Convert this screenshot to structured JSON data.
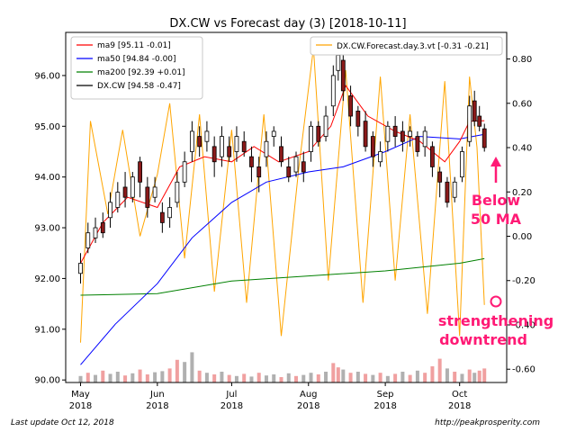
{
  "chart_data": {
    "type": "line",
    "title": "DX.CW vs Forecast day (3)  [2018-10-11]",
    "x_ticks": [
      "May\n2018",
      "Jun\n2018",
      "Jul\n2018",
      "Aug\n2018",
      "Sep\n2018",
      "Oct\n2018"
    ],
    "x_tick_dates": [
      "2018-05-01",
      "2018-06-01",
      "2018-07-01",
      "2018-08-01",
      "2018-09-01",
      "2018-10-01"
    ],
    "xlim": [
      "2018-04-25",
      "2018-10-20"
    ],
    "ylim_left": [
      89.95,
      96.85
    ],
    "yticks_left": [
      "90.00",
      "91.00",
      "92.00",
      "93.00",
      "94.00",
      "95.00",
      "96.00"
    ],
    "ylim_right": [
      -0.66,
      0.92
    ],
    "yticks_right": [
      "-0.60",
      "-0.40",
      "-0.20",
      "0.00",
      "0.20",
      "0.40",
      "0.60",
      "0.80"
    ],
    "legend_left": [
      "ma9 [95.11 -0.01]",
      "ma50 [94.84 -0.00]",
      "ma200 [92.39 +0.01]",
      "DX.CW [94.58 -0.47]"
    ],
    "legend_right": [
      "DX.CW.Forecast.day.3.vt [-0.31 -0.21]"
    ],
    "colors": {
      "ma9": "#ff0000",
      "ma50": "#0000ff",
      "ma200": "#008000",
      "forecast": "#ffa500",
      "candle_up": "#ffffff",
      "candle_down": "#8b1a1a",
      "volume_up": "#b0b0b0",
      "volume_down": "#f0a0a0",
      "annotation": "#ff1a75"
    },
    "series": [
      {
        "name": "ma9",
        "x": [
          "2018-05-01",
          "2018-05-10",
          "2018-05-20",
          "2018-06-01",
          "2018-06-10",
          "2018-06-20",
          "2018-07-01",
          "2018-07-10",
          "2018-07-20",
          "2018-08-01",
          "2018-08-10",
          "2018-08-16",
          "2018-08-25",
          "2018-09-05",
          "2018-09-15",
          "2018-09-25",
          "2018-10-01",
          "2018-10-05",
          "2018-10-11"
        ],
        "y": [
          92.3,
          93.1,
          93.6,
          93.4,
          94.2,
          94.4,
          94.3,
          94.6,
          94.3,
          94.5,
          95.0,
          95.8,
          95.2,
          94.9,
          94.7,
          94.3,
          94.7,
          95.1,
          95.11
        ]
      },
      {
        "name": "ma50",
        "x": [
          "2018-05-01",
          "2018-05-15",
          "2018-06-01",
          "2018-06-15",
          "2018-07-01",
          "2018-07-15",
          "2018-08-01",
          "2018-08-15",
          "2018-09-01",
          "2018-09-15",
          "2018-10-01",
          "2018-10-11"
        ],
        "y": [
          90.3,
          91.1,
          91.9,
          92.8,
          93.5,
          93.9,
          94.1,
          94.2,
          94.5,
          94.8,
          94.75,
          94.84
        ]
      },
      {
        "name": "ma200",
        "x": [
          "2018-05-01",
          "2018-06-01",
          "2018-07-01",
          "2018-08-01",
          "2018-09-01",
          "2018-10-01",
          "2018-10-11"
        ],
        "y": [
          91.67,
          91.7,
          91.95,
          92.05,
          92.15,
          92.3,
          92.39
        ]
      },
      {
        "name": "DX.CW.Forecast.day.3.vt",
        "axis": "right",
        "x": [
          "2018-05-01",
          "2018-05-05",
          "2018-05-12",
          "2018-05-18",
          "2018-05-25",
          "2018-06-01",
          "2018-06-06",
          "2018-06-12",
          "2018-06-18",
          "2018-06-24",
          "2018-07-01",
          "2018-07-07",
          "2018-07-14",
          "2018-07-21",
          "2018-07-28",
          "2018-08-03",
          "2018-08-09",
          "2018-08-16",
          "2018-08-23",
          "2018-08-30",
          "2018-09-05",
          "2018-09-11",
          "2018-09-18",
          "2018-09-25",
          "2018-10-01",
          "2018-10-05",
          "2018-10-08",
          "2018-10-11"
        ],
        "y": [
          -0.48,
          0.52,
          0.1,
          0.48,
          0.0,
          0.28,
          0.6,
          -0.1,
          0.55,
          -0.25,
          0.48,
          -0.3,
          0.55,
          -0.45,
          0.3,
          0.85,
          -0.2,
          0.75,
          -0.3,
          0.72,
          -0.2,
          0.55,
          -0.35,
          0.7,
          -0.45,
          0.72,
          0.4,
          -0.31
        ]
      }
    ],
    "candles": [
      {
        "x": "2018-05-01",
        "o": 92.1,
        "c": 92.3,
        "h": 92.5,
        "l": 91.9
      },
      {
        "x": "2018-05-04",
        "o": 92.6,
        "c": 92.9,
        "h": 93.1,
        "l": 92.5
      },
      {
        "x": "2018-05-07",
        "o": 92.8,
        "c": 93.0,
        "h": 93.2,
        "l": 92.7
      },
      {
        "x": "2018-05-10",
        "o": 93.1,
        "c": 92.9,
        "h": 93.3,
        "l": 92.8
      },
      {
        "x": "2018-05-13",
        "o": 93.2,
        "c": 93.5,
        "h": 93.7,
        "l": 93.0
      },
      {
        "x": "2018-05-16",
        "o": 93.4,
        "c": 93.7,
        "h": 93.9,
        "l": 93.3
      },
      {
        "x": "2018-05-19",
        "o": 93.8,
        "c": 93.6,
        "h": 94.1,
        "l": 93.4
      },
      {
        "x": "2018-05-22",
        "o": 93.6,
        "c": 94.0,
        "h": 94.1,
        "l": 93.5
      },
      {
        "x": "2018-05-25",
        "o": 94.3,
        "c": 93.9,
        "h": 94.4,
        "l": 93.6
      },
      {
        "x": "2018-05-28",
        "o": 93.8,
        "c": 93.4,
        "h": 94.0,
        "l": 93.2
      },
      {
        "x": "2018-05-31",
        "o": 93.6,
        "c": 93.8,
        "h": 94.0,
        "l": 93.5
      },
      {
        "x": "2018-06-03",
        "o": 93.3,
        "c": 93.1,
        "h": 93.5,
        "l": 92.9
      },
      {
        "x": "2018-06-06",
        "o": 93.2,
        "c": 93.4,
        "h": 93.6,
        "l": 93.0
      },
      {
        "x": "2018-06-09",
        "o": 93.5,
        "c": 93.9,
        "h": 94.1,
        "l": 93.4
      },
      {
        "x": "2018-06-12",
        "o": 93.9,
        "c": 94.3,
        "h": 94.5,
        "l": 93.8
      },
      {
        "x": "2018-06-15",
        "o": 94.5,
        "c": 94.9,
        "h": 95.1,
        "l": 94.3
      },
      {
        "x": "2018-06-18",
        "o": 94.8,
        "c": 94.6,
        "h": 95.0,
        "l": 94.4
      },
      {
        "x": "2018-06-21",
        "o": 94.7,
        "c": 94.9,
        "h": 95.1,
        "l": 94.5
      },
      {
        "x": "2018-06-24",
        "o": 94.6,
        "c": 94.3,
        "h": 94.8,
        "l": 94.0
      },
      {
        "x": "2018-06-27",
        "o": 94.4,
        "c": 94.8,
        "h": 95.0,
        "l": 94.2
      },
      {
        "x": "2018-06-30",
        "o": 94.6,
        "c": 94.4,
        "h": 94.8,
        "l": 94.3
      },
      {
        "x": "2018-07-03",
        "o": 94.5,
        "c": 94.8,
        "h": 95.0,
        "l": 94.3
      },
      {
        "x": "2018-07-06",
        "o": 94.7,
        "c": 94.5,
        "h": 94.9,
        "l": 94.4
      },
      {
        "x": "2018-07-09",
        "o": 94.4,
        "c": 94.2,
        "h": 94.6,
        "l": 93.9
      },
      {
        "x": "2018-07-12",
        "o": 94.2,
        "c": 94.0,
        "h": 94.4,
        "l": 93.7
      },
      {
        "x": "2018-07-15",
        "o": 94.4,
        "c": 94.7,
        "h": 94.9,
        "l": 94.2
      },
      {
        "x": "2018-07-18",
        "o": 94.8,
        "c": 94.9,
        "h": 95.0,
        "l": 94.6
      },
      {
        "x": "2018-07-21",
        "o": 94.6,
        "c": 94.3,
        "h": 94.8,
        "l": 94.2
      },
      {
        "x": "2018-07-24",
        "o": 94.2,
        "c": 94.0,
        "h": 94.4,
        "l": 93.9
      },
      {
        "x": "2018-07-27",
        "o": 94.1,
        "c": 94.4,
        "h": 94.5,
        "l": 94.0
      },
      {
        "x": "2018-07-30",
        "o": 94.3,
        "c": 94.1,
        "h": 94.5,
        "l": 93.9
      },
      {
        "x": "2018-08-02",
        "o": 94.5,
        "c": 95.0,
        "h": 95.1,
        "l": 94.3
      },
      {
        "x": "2018-08-05",
        "o": 95.0,
        "c": 94.7,
        "h": 95.1,
        "l": 94.6
      },
      {
        "x": "2018-08-08",
        "o": 94.8,
        "c": 95.2,
        "h": 95.4,
        "l": 94.7
      },
      {
        "x": "2018-08-11",
        "o": 95.4,
        "c": 96.0,
        "h": 96.2,
        "l": 95.2
      },
      {
        "x": "2018-08-13",
        "o": 96.1,
        "c": 96.4,
        "h": 96.5,
        "l": 95.9
      },
      {
        "x": "2018-08-15",
        "o": 96.3,
        "c": 95.7,
        "h": 96.4,
        "l": 95.5
      },
      {
        "x": "2018-08-18",
        "o": 95.6,
        "c": 95.2,
        "h": 95.8,
        "l": 95.0
      },
      {
        "x": "2018-08-21",
        "o": 95.3,
        "c": 95.0,
        "h": 95.4,
        "l": 94.8
      },
      {
        "x": "2018-08-24",
        "o": 95.1,
        "c": 94.6,
        "h": 95.3,
        "l": 94.5
      },
      {
        "x": "2018-08-27",
        "o": 94.8,
        "c": 94.4,
        "h": 94.9,
        "l": 94.2
      },
      {
        "x": "2018-08-30",
        "o": 94.3,
        "c": 94.5,
        "h": 94.7,
        "l": 94.2
      },
      {
        "x": "2018-09-02",
        "o": 94.7,
        "c": 95.0,
        "h": 95.1,
        "l": 94.5
      },
      {
        "x": "2018-09-05",
        "o": 95.0,
        "c": 94.8,
        "h": 95.2,
        "l": 94.6
      },
      {
        "x": "2018-09-08",
        "o": 94.9,
        "c": 94.7,
        "h": 95.1,
        "l": 94.5
      },
      {
        "x": "2018-09-11",
        "o": 94.8,
        "c": 94.9,
        "h": 95.0,
        "l": 94.6
      },
      {
        "x": "2018-09-14",
        "o": 94.8,
        "c": 94.5,
        "h": 94.9,
        "l": 94.4
      },
      {
        "x": "2018-09-17",
        "o": 94.6,
        "c": 94.9,
        "h": 95.0,
        "l": 94.4
      },
      {
        "x": "2018-09-20",
        "o": 94.6,
        "c": 94.2,
        "h": 94.7,
        "l": 94.0
      },
      {
        "x": "2018-09-23",
        "o": 94.1,
        "c": 93.9,
        "h": 94.2,
        "l": 93.6
      },
      {
        "x": "2018-09-26",
        "o": 93.9,
        "c": 93.5,
        "h": 94.0,
        "l": 93.4
      },
      {
        "x": "2018-09-29",
        "o": 93.6,
        "c": 93.9,
        "h": 94.0,
        "l": 93.5
      },
      {
        "x": "2018-10-02",
        "o": 94.0,
        "c": 94.5,
        "h": 94.6,
        "l": 93.9
      },
      {
        "x": "2018-10-05",
        "o": 94.7,
        "c": 95.4,
        "h": 95.6,
        "l": 94.6
      },
      {
        "x": "2018-10-07",
        "o": 95.5,
        "c": 95.1,
        "h": 95.7,
        "l": 95.0
      },
      {
        "x": "2018-10-09",
        "o": 95.2,
        "c": 95.0,
        "h": 95.4,
        "l": 94.9
      },
      {
        "x": "2018-10-11",
        "o": 94.95,
        "c": 94.58,
        "h": 95.05,
        "l": 94.5
      }
    ],
    "volume_scale": [
      0,
      1
    ],
    "volumes": [
      {
        "x": "2018-05-01",
        "v": 0.12,
        "down": false
      },
      {
        "x": "2018-05-04",
        "v": 0.18,
        "down": true
      },
      {
        "x": "2018-05-07",
        "v": 0.14,
        "down": false
      },
      {
        "x": "2018-05-10",
        "v": 0.22,
        "down": true
      },
      {
        "x": "2018-05-13",
        "v": 0.16,
        "down": false
      },
      {
        "x": "2018-05-16",
        "v": 0.2,
        "down": false
      },
      {
        "x": "2018-05-19",
        "v": 0.13,
        "down": true
      },
      {
        "x": "2018-05-22",
        "v": 0.17,
        "down": false
      },
      {
        "x": "2018-05-25",
        "v": 0.24,
        "down": true
      },
      {
        "x": "2018-05-28",
        "v": 0.15,
        "down": true
      },
      {
        "x": "2018-05-31",
        "v": 0.19,
        "down": false
      },
      {
        "x": "2018-06-03",
        "v": 0.21,
        "down": false
      },
      {
        "x": "2018-06-06",
        "v": 0.26,
        "down": true
      },
      {
        "x": "2018-06-09",
        "v": 0.42,
        "down": true
      },
      {
        "x": "2018-06-12",
        "v": 0.38,
        "down": false
      },
      {
        "x": "2018-06-15",
        "v": 0.56,
        "down": false
      },
      {
        "x": "2018-06-18",
        "v": 0.22,
        "down": true
      },
      {
        "x": "2018-06-21",
        "v": 0.18,
        "down": false
      },
      {
        "x": "2018-06-24",
        "v": 0.15,
        "down": true
      },
      {
        "x": "2018-06-27",
        "v": 0.2,
        "down": false
      },
      {
        "x": "2018-06-30",
        "v": 0.14,
        "down": true
      },
      {
        "x": "2018-07-03",
        "v": 0.12,
        "down": false
      },
      {
        "x": "2018-07-06",
        "v": 0.16,
        "down": true
      },
      {
        "x": "2018-07-09",
        "v": 0.11,
        "down": false
      },
      {
        "x": "2018-07-12",
        "v": 0.18,
        "down": true
      },
      {
        "x": "2018-07-15",
        "v": 0.13,
        "down": false
      },
      {
        "x": "2018-07-18",
        "v": 0.15,
        "down": false
      },
      {
        "x": "2018-07-21",
        "v": 0.1,
        "down": true
      },
      {
        "x": "2018-07-24",
        "v": 0.17,
        "down": false
      },
      {
        "x": "2018-07-27",
        "v": 0.12,
        "down": true
      },
      {
        "x": "2018-07-30",
        "v": 0.14,
        "down": false
      },
      {
        "x": "2018-08-02",
        "v": 0.18,
        "down": false
      },
      {
        "x": "2018-08-05",
        "v": 0.15,
        "down": true
      },
      {
        "x": "2018-08-08",
        "v": 0.2,
        "down": false
      },
      {
        "x": "2018-08-11",
        "v": 0.36,
        "down": true
      },
      {
        "x": "2018-08-13",
        "v": 0.28,
        "down": true
      },
      {
        "x": "2018-08-15",
        "v": 0.24,
        "down": false
      },
      {
        "x": "2018-08-18",
        "v": 0.18,
        "down": true
      },
      {
        "x": "2018-08-21",
        "v": 0.2,
        "down": false
      },
      {
        "x": "2018-08-24",
        "v": 0.16,
        "down": true
      },
      {
        "x": "2018-08-27",
        "v": 0.14,
        "down": false
      },
      {
        "x": "2018-08-30",
        "v": 0.18,
        "down": true
      },
      {
        "x": "2018-09-02",
        "v": 0.12,
        "down": false
      },
      {
        "x": "2018-09-05",
        "v": 0.16,
        "down": true
      },
      {
        "x": "2018-09-08",
        "v": 0.2,
        "down": false
      },
      {
        "x": "2018-09-11",
        "v": 0.14,
        "down": true
      },
      {
        "x": "2018-09-14",
        "v": 0.22,
        "down": false
      },
      {
        "x": "2018-09-17",
        "v": 0.18,
        "down": true
      },
      {
        "x": "2018-09-20",
        "v": 0.3,
        "down": true
      },
      {
        "x": "2018-09-23",
        "v": 0.44,
        "down": true
      },
      {
        "x": "2018-09-26",
        "v": 0.26,
        "down": false
      },
      {
        "x": "2018-09-29",
        "v": 0.2,
        "down": true
      },
      {
        "x": "2018-10-02",
        "v": 0.16,
        "down": false
      },
      {
        "x": "2018-10-05",
        "v": 0.24,
        "down": true
      },
      {
        "x": "2018-10-07",
        "v": 0.18,
        "down": false
      },
      {
        "x": "2018-10-09",
        "v": 0.22,
        "down": true
      },
      {
        "x": "2018-10-11",
        "v": 0.26,
        "down": true
      }
    ],
    "annotations": [
      {
        "text": "Below\n50 MA",
        "color": "#ff1a75"
      },
      {
        "text": "strengthening\ndowntrend",
        "color": "#ff1a75"
      }
    ]
  },
  "footer": {
    "left": "Last update Oct 12, 2018",
    "right": "http://peakprosperity.com"
  }
}
